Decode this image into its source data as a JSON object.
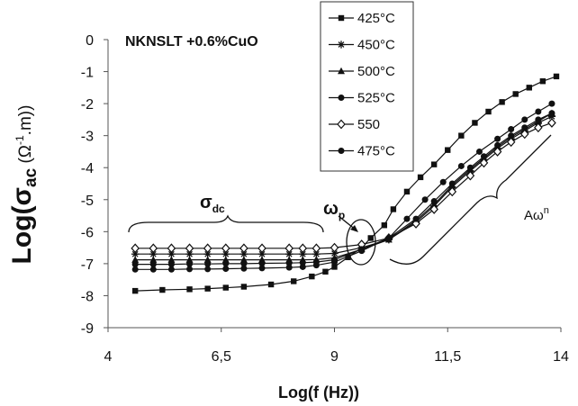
{
  "chart_data": {
    "type": "line",
    "title": "NKNSLT +0.6%CuO",
    "xlabel": "Log(f (Hz))",
    "ylabel_main": "Log(σ",
    "ylabel_sub": "ac",
    "ylabel_mid": " (Ω",
    "ylabel_sup": "-1",
    "ylabel_end": ".m))",
    "xlim": [
      4,
      14
    ],
    "ylim": [
      -9,
      0
    ],
    "x_ticks": [
      "4",
      "6,5",
      "9",
      "11,5",
      "14"
    ],
    "x_tick_values": [
      4,
      6.5,
      9,
      11.5,
      14
    ],
    "y_ticks": [
      "0",
      "-1",
      "-2",
      "-3",
      "-4",
      "-5",
      "-6",
      "-7",
      "-8",
      "-9"
    ],
    "y_tick_values": [
      0,
      -1,
      -2,
      -3,
      -4,
      -5,
      -6,
      -7,
      -8,
      -9
    ],
    "grid": false,
    "legend_position": "top-right",
    "annotations": {
      "sigma_dc": "σ",
      "sigma_dc_sub": "dc",
      "omega_p": "ω",
      "omega_p_sub": "p",
      "a_omega": "Aω",
      "a_omega_sup": "n"
    },
    "series": [
      {
        "name": "425°C",
        "marker": "square",
        "x": [
          4.6,
          5.2,
          5.8,
          6.2,
          6.6,
          7.0,
          7.6,
          8.1,
          8.5,
          8.8,
          9.0,
          9.3,
          9.6,
          9.8,
          10.1,
          10.3,
          10.6,
          10.9,
          11.2,
          11.5,
          11.8,
          12.1,
          12.4,
          12.7,
          13.0,
          13.3,
          13.6,
          13.9
        ],
        "y": [
          -7.85,
          -7.82,
          -7.8,
          -7.78,
          -7.75,
          -7.72,
          -7.65,
          -7.55,
          -7.4,
          -7.25,
          -7.1,
          -6.8,
          -6.5,
          -6.2,
          -5.8,
          -5.3,
          -4.75,
          -4.3,
          -3.9,
          -3.45,
          -3.0,
          -2.6,
          -2.25,
          -1.95,
          -1.7,
          -1.5,
          -1.3,
          -1.15
        ]
      },
      {
        "name": "450°C",
        "marker": "asterisk",
        "x": [
          4.6,
          5.0,
          5.4,
          5.8,
          6.2,
          6.6,
          7.0,
          7.4,
          8.0,
          8.3,
          8.6,
          9.0,
          9.6,
          10.2,
          10.8,
          11.2,
          11.6,
          12.0,
          12.3,
          12.6,
          12.9,
          13.2,
          13.5,
          13.8
        ],
        "y": [
          -6.7,
          -6.7,
          -6.7,
          -6.7,
          -6.7,
          -6.7,
          -6.7,
          -6.7,
          -6.7,
          -6.7,
          -6.7,
          -6.68,
          -6.5,
          -6.25,
          -5.7,
          -5.2,
          -4.6,
          -4.1,
          -3.75,
          -3.4,
          -3.1,
          -2.85,
          -2.6,
          -2.4
        ]
      },
      {
        "name": "500°C",
        "marker": "triangle",
        "x": [
          4.6,
          5.0,
          5.4,
          5.8,
          6.2,
          6.6,
          7.0,
          7.4,
          8.0,
          8.3,
          8.6,
          9.0,
          9.6,
          10.2,
          10.8,
          11.2,
          11.6,
          12.0,
          12.3,
          12.6,
          12.9,
          13.2,
          13.5,
          13.8
        ],
        "y": [
          -6.88,
          -6.88,
          -6.88,
          -6.88,
          -6.88,
          -6.88,
          -6.88,
          -6.88,
          -6.88,
          -6.88,
          -6.87,
          -6.82,
          -6.55,
          -6.25,
          -5.65,
          -5.15,
          -4.55,
          -4.05,
          -3.7,
          -3.35,
          -3.05,
          -2.8,
          -2.55,
          -2.3
        ]
      },
      {
        "name": "525°C",
        "marker": "circle",
        "x": [
          4.6,
          5.0,
          5.4,
          5.8,
          6.2,
          6.6,
          7.0,
          7.4,
          8.0,
          8.3,
          8.6,
          9.0,
          9.6,
          10.2,
          10.6,
          11.0,
          11.4,
          11.8,
          12.2,
          12.6,
          12.9,
          13.2,
          13.5,
          13.8
        ],
        "y": [
          -7.18,
          -7.18,
          -7.18,
          -7.17,
          -7.17,
          -7.16,
          -7.15,
          -7.14,
          -7.12,
          -7.1,
          -7.05,
          -6.95,
          -6.6,
          -6.2,
          -5.6,
          -5.0,
          -4.45,
          -3.95,
          -3.5,
          -3.1,
          -2.8,
          -2.5,
          -2.25,
          -2.0
        ]
      },
      {
        "name": "550",
        "marker": "diamond",
        "x": [
          4.6,
          5.0,
          5.4,
          5.8,
          6.2,
          6.6,
          7.0,
          7.4,
          8.0,
          8.3,
          8.6,
          9.0,
          9.6,
          10.2,
          10.8,
          11.2,
          11.6,
          12.0,
          12.3,
          12.6,
          12.9,
          13.2,
          13.5,
          13.8
        ],
        "y": [
          -6.52,
          -6.52,
          -6.52,
          -6.52,
          -6.52,
          -6.52,
          -6.52,
          -6.52,
          -6.52,
          -6.52,
          -6.52,
          -6.5,
          -6.4,
          -6.2,
          -5.75,
          -5.3,
          -4.75,
          -4.25,
          -3.85,
          -3.5,
          -3.2,
          -2.95,
          -2.75,
          -2.6
        ]
      },
      {
        "name": "475°C",
        "marker": "circle",
        "x": [
          4.6,
          5.0,
          5.4,
          5.8,
          6.2,
          6.6,
          7.0,
          7.4,
          8.0,
          8.3,
          8.6,
          9.0,
          9.6,
          10.2,
          10.8,
          11.2,
          11.6,
          12.0,
          12.3,
          12.6,
          12.9,
          13.2,
          13.5,
          13.8
        ],
        "y": [
          -7.02,
          -7.02,
          -7.02,
          -7.01,
          -7.01,
          -7.0,
          -7.0,
          -6.99,
          -6.98,
          -6.97,
          -6.95,
          -6.88,
          -6.55,
          -6.2,
          -5.6,
          -5.05,
          -4.5,
          -4.0,
          -3.65,
          -3.3,
          -3.0,
          -2.75,
          -2.5,
          -2.3
        ]
      }
    ]
  }
}
